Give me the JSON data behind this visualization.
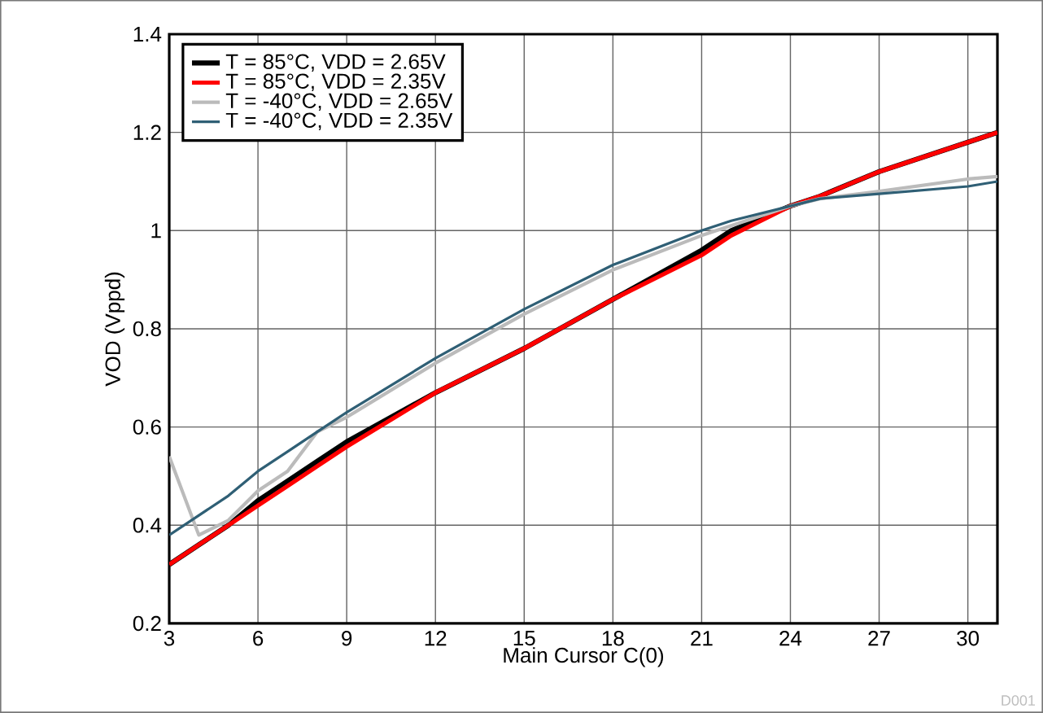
{
  "chart_data": {
    "type": "line",
    "xlabel": "Main Cursor C(0)",
    "ylabel": "VOD (Vppd)",
    "x": [
      3,
      4,
      5,
      6,
      7,
      8,
      9,
      12,
      15,
      18,
      21,
      22,
      24,
      25,
      27,
      30,
      31
    ],
    "series": [
      {
        "name": "T = 85°C, VDD = 2.65V",
        "color": "#000000",
        "values": [
          0.32,
          0.36,
          0.4,
          0.45,
          0.49,
          0.53,
          0.57,
          0.67,
          0.76,
          0.86,
          0.96,
          1.0,
          1.05,
          1.07,
          1.12,
          1.18,
          1.2
        ]
      },
      {
        "name": "T = 85°C, VDD = 2.35V",
        "color": "#ff0000",
        "values": [
          0.32,
          0.36,
          0.4,
          0.44,
          0.48,
          0.52,
          0.56,
          0.67,
          0.76,
          0.86,
          0.95,
          0.99,
          1.05,
          1.07,
          1.12,
          1.18,
          1.2
        ]
      },
      {
        "name": "T = -40°C, VDD = 2.65V",
        "color": "#bbbbbb",
        "values": [
          0.54,
          0.38,
          0.41,
          0.47,
          0.51,
          0.59,
          0.62,
          0.73,
          0.83,
          0.92,
          0.99,
          1.01,
          1.05,
          1.065,
          1.08,
          1.105,
          1.11
        ]
      },
      {
        "name": "T = -40°C, VDD = 2.35V",
        "color": "#2f5f75",
        "values": [
          0.38,
          0.42,
          0.46,
          0.51,
          0.55,
          0.59,
          0.63,
          0.74,
          0.84,
          0.93,
          1.0,
          1.02,
          1.05,
          1.065,
          1.075,
          1.09,
          1.1
        ]
      }
    ],
    "xlim": [
      3,
      31
    ],
    "xticks": [
      3,
      6,
      9,
      12,
      15,
      18,
      21,
      24,
      27,
      30
    ],
    "ylim": [
      0.2,
      1.4
    ],
    "yticks": [
      0.2,
      0.4,
      0.6,
      0.8,
      1,
      1.2,
      1.4
    ],
    "grid": true,
    "legend": "top left",
    "marker": "none",
    "line_style": "solid",
    "annotations": [
      "D001"
    ]
  }
}
